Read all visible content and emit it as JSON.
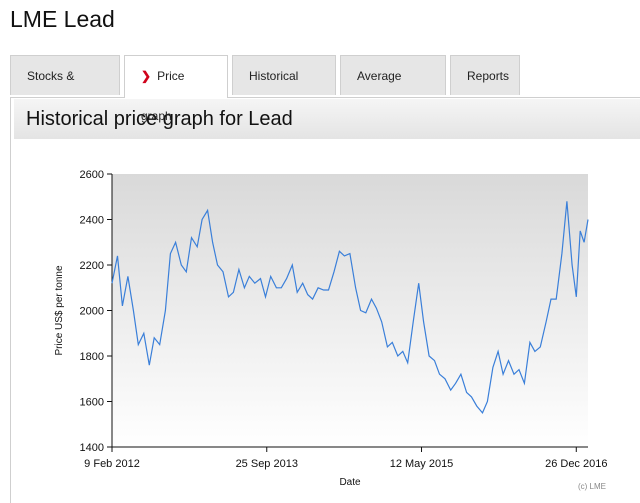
{
  "page": {
    "title": "LME Lead"
  },
  "tabs": [
    {
      "label": "Stocks & prices",
      "active": false
    },
    {
      "label": "Price graph",
      "active": true
    },
    {
      "label": "Historical data",
      "active": false
    },
    {
      "label": "Average prices",
      "active": false
    },
    {
      "label": "Reports",
      "active": false
    }
  ],
  "section": {
    "title": "Historical price graph for Lead"
  },
  "colors": {
    "line": "#3a7fd9",
    "accent": "#d0021b"
  },
  "chart_data": {
    "type": "line",
    "xlabel": "Date",
    "ylabel": "Price US$ per tonne",
    "credit": "(c) LME",
    "ylim": [
      1400,
      2600
    ],
    "yticks": [
      1400,
      1600,
      1800,
      2000,
      2200,
      2400,
      2600
    ],
    "xlim": [
      "2012-02-09",
      "2017-02-09"
    ],
    "xticks": [
      {
        "date": "2012-02-09",
        "label": "9 Feb 2012"
      },
      {
        "date": "2013-09-25",
        "label": "25 Sep 2013"
      },
      {
        "date": "2015-05-12",
        "label": "12 May 2015"
      },
      {
        "date": "2016-12-26",
        "label": "26 Dec 2016"
      }
    ],
    "grid": false,
    "series": [
      {
        "x": [
          "2012-02-09",
          "2012-03-01",
          "2012-03-20",
          "2012-04-10",
          "2012-05-01",
          "2012-05-20",
          "2012-06-10",
          "2012-07-01",
          "2012-07-20",
          "2012-08-10",
          "2012-09-01",
          "2012-09-20",
          "2012-10-10",
          "2012-11-01",
          "2012-11-20",
          "2012-12-10",
          "2013-01-01",
          "2013-01-20",
          "2013-02-10",
          "2013-03-01",
          "2013-03-20",
          "2013-04-10",
          "2013-05-01",
          "2013-05-20",
          "2013-06-10",
          "2013-07-01",
          "2013-07-20",
          "2013-08-10",
          "2013-09-01",
          "2013-09-20",
          "2013-10-10",
          "2013-11-01",
          "2013-11-20",
          "2013-12-10",
          "2014-01-01",
          "2014-01-20",
          "2014-02-10",
          "2014-03-01",
          "2014-03-20",
          "2014-04-10",
          "2014-05-01",
          "2014-05-20",
          "2014-06-10",
          "2014-07-01",
          "2014-07-20",
          "2014-08-10",
          "2014-09-01",
          "2014-09-20",
          "2014-10-10",
          "2014-11-01",
          "2014-11-20",
          "2014-12-10",
          "2015-01-01",
          "2015-01-20",
          "2015-02-10",
          "2015-03-01",
          "2015-03-20",
          "2015-04-10",
          "2015-05-01",
          "2015-05-20",
          "2015-06-10",
          "2015-07-01",
          "2015-07-20",
          "2015-08-10",
          "2015-09-01",
          "2015-09-20",
          "2015-10-10",
          "2015-11-01",
          "2015-11-20",
          "2015-12-10",
          "2016-01-01",
          "2016-01-20",
          "2016-02-10",
          "2016-03-01",
          "2016-03-20",
          "2016-04-10",
          "2016-05-01",
          "2016-05-20",
          "2016-06-10",
          "2016-07-01",
          "2016-07-20",
          "2016-08-10",
          "2016-09-01",
          "2016-09-20",
          "2016-10-10",
          "2016-11-01",
          "2016-11-20",
          "2016-12-10",
          "2016-12-26",
          "2017-01-10",
          "2017-01-25",
          "2017-02-09"
        ],
        "y": [
          2120,
          2240,
          2020,
          2150,
          2000,
          1850,
          1900,
          1760,
          1880,
          1850,
          2000,
          2250,
          2300,
          2200,
          2170,
          2320,
          2280,
          2400,
          2440,
          2300,
          2200,
          2170,
          2060,
          2080,
          2180,
          2100,
          2150,
          2120,
          2140,
          2060,
          2150,
          2100,
          2100,
          2140,
          2200,
          2080,
          2120,
          2070,
          2050,
          2100,
          2090,
          2090,
          2170,
          2260,
          2240,
          2250,
          2100,
          2000,
          1990,
          2050,
          2010,
          1950,
          1840,
          1860,
          1800,
          1820,
          1770,
          1950,
          2120,
          1950,
          1800,
          1780,
          1720,
          1700,
          1650,
          1680,
          1720,
          1640,
          1620,
          1580,
          1550,
          1600,
          1750,
          1820,
          1720,
          1780,
          1720,
          1740,
          1680,
          1860,
          1820,
          1840,
          1950,
          2050,
          2050,
          2250,
          2480,
          2200,
          2060,
          2350,
          2300,
          2400
        ]
      }
    ]
  }
}
